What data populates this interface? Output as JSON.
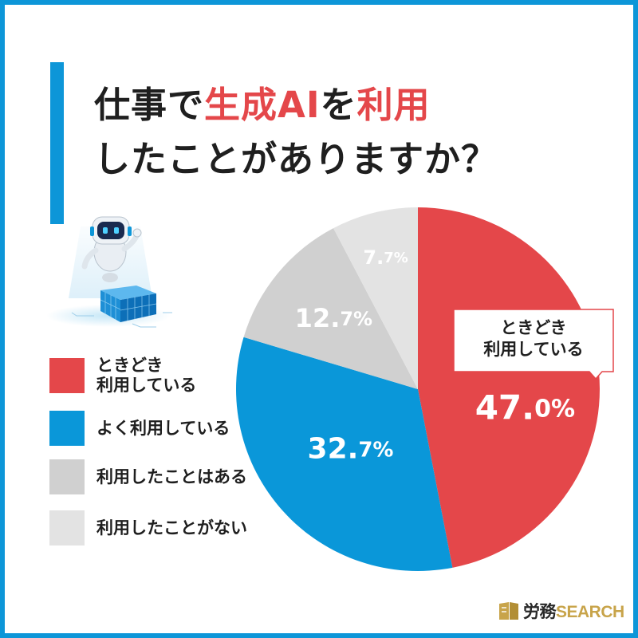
{
  "title": {
    "line1_a": "仕事で",
    "line1_highlight": "生成AI",
    "line1_b": "を",
    "line1_highlight2": "利用",
    "line2": "したことがありますか？"
  },
  "colors": {
    "accent": "#0d96d8",
    "sometimes": "#e4474a",
    "often": "#0a97d9",
    "used_once": "#d0d0d0",
    "never": "#e3e3e3"
  },
  "chart_data": {
    "type": "pie",
    "slices": [
      {
        "label": "ときどき利用している",
        "value": 47.0,
        "display_main": "47.",
        "display_dec": "0%",
        "color": "#e4474a"
      },
      {
        "label": "よく利用している",
        "value": 32.7,
        "display_main": "32.",
        "display_dec": "7%",
        "color": "#0a97d9"
      },
      {
        "label": "利用したことはある",
        "value": 12.7,
        "display_main": "12.",
        "display_dec": "7%",
        "color": "#d0d0d0"
      },
      {
        "label": "利用したことがない",
        "value": 7.7,
        "display_main": "7.",
        "display_dec": "7%",
        "color": "#e3e3e3"
      }
    ],
    "start_angle": "12 o'clock",
    "direction": "clockwise",
    "callout": {
      "line1": "ときどき",
      "line2": "利用している"
    }
  },
  "legend": [
    {
      "line1": "ときどき",
      "line2": "利用している",
      "color": "#e4474a"
    },
    {
      "line1": "よく利用している",
      "line2": "",
      "color": "#0a97d9"
    },
    {
      "line1": "利用したことはある",
      "line2": "",
      "color": "#d0d0d0"
    },
    {
      "line1": "利用したことがない",
      "line2": "",
      "color": "#e3e3e3"
    }
  ],
  "logo": {
    "jp": "労務",
    "en": "SEARCH"
  }
}
